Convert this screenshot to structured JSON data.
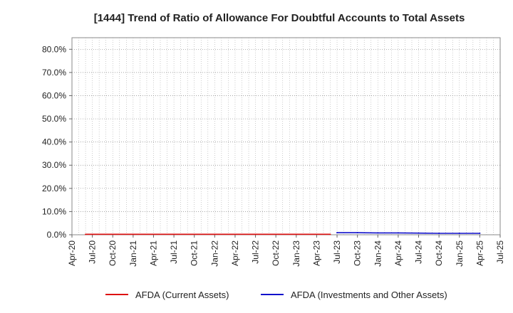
{
  "chart_data": {
    "type": "line",
    "title": "[1444]  Trend of Ratio of Allowance For Doubtful Accounts to Total Assets",
    "xlabel": "",
    "ylabel": "",
    "ylim": [
      0,
      0.85
    ],
    "y_ticks": [
      "0.0%",
      "10.0%",
      "20.0%",
      "30.0%",
      "40.0%",
      "50.0%",
      "60.0%",
      "70.0%",
      "80.0%"
    ],
    "x_ticks": [
      "Apr-20",
      "Jul-20",
      "Oct-20",
      "Jan-21",
      "Apr-21",
      "Jul-21",
      "Oct-21",
      "Jan-22",
      "Apr-22",
      "Jul-22",
      "Oct-22",
      "Jan-23",
      "Apr-23",
      "Jul-23",
      "Oct-23",
      "Jan-24",
      "Apr-24",
      "Jul-24",
      "Oct-24",
      "Jan-25",
      "Apr-25",
      "Jul-25"
    ],
    "grid": true,
    "legend_position": "bottom",
    "series": [
      {
        "name": "AFDA (Current Assets)",
        "color": "#dd1111",
        "points": [
          [
            "Jun-20",
            0.002
          ],
          [
            "Jul-20",
            0.002
          ],
          [
            "Jan-21",
            0.002
          ],
          [
            "Jul-21",
            0.002
          ],
          [
            "Jan-22",
            0.002
          ],
          [
            "Jul-22",
            0.002
          ],
          [
            "Jan-23",
            0.002
          ],
          [
            "Jun-23",
            0.002
          ]
        ]
      },
      {
        "name": "AFDA (Investments and Other Assets)",
        "color": "#1111cc",
        "points": [
          [
            "Jul-23",
            0.009
          ],
          [
            "Oct-23",
            0.009
          ],
          [
            "Jan-24",
            0.008
          ],
          [
            "Apr-24",
            0.008
          ],
          [
            "Jul-24",
            0.007
          ],
          [
            "Oct-24",
            0.006
          ],
          [
            "Jan-25",
            0.006
          ],
          [
            "Apr-25",
            0.006
          ]
        ]
      }
    ]
  }
}
